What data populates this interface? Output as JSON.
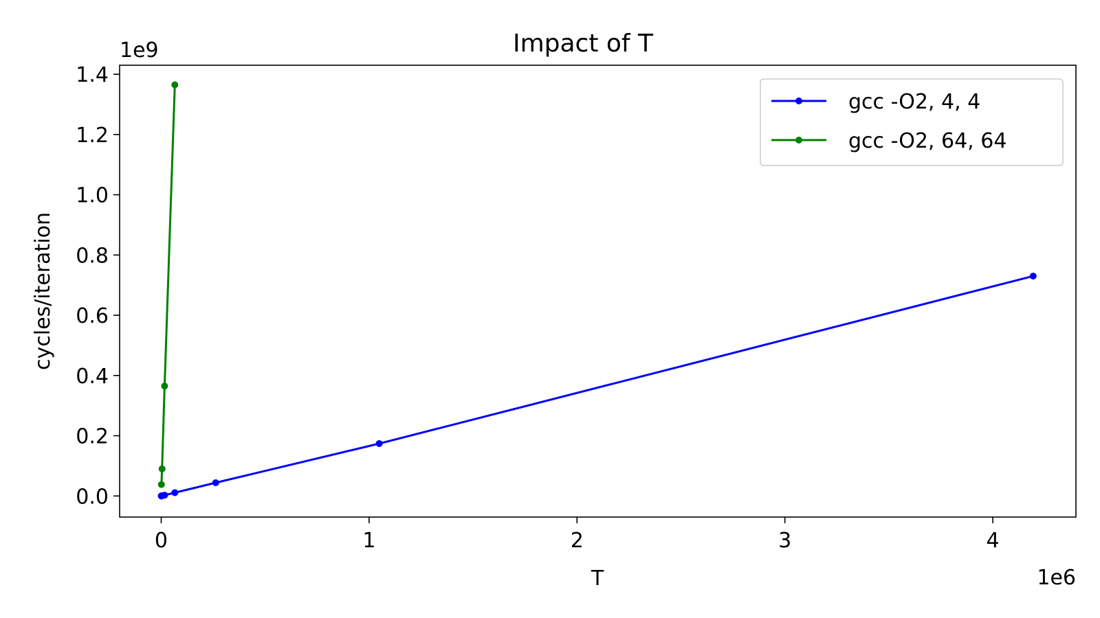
{
  "chart_data": {
    "type": "line",
    "title": "Impact of T",
    "xlabel": "T",
    "ylabel": "cycles/iteration",
    "x_offset_label": "1e6",
    "y_offset_label": "1e9",
    "xlim": [
      -200000,
      4400000
    ],
    "ylim": [
      -70000000,
      1430000000
    ],
    "x_ticks": [
      0,
      1000000,
      2000000,
      3000000,
      4000000
    ],
    "x_tick_labels": [
      "0",
      "1",
      "2",
      "3",
      "4"
    ],
    "y_ticks": [
      0,
      200000000,
      400000000,
      600000000,
      800000000,
      1000000000,
      1200000000,
      1400000000
    ],
    "y_tick_labels": [
      "0.0",
      "0.2",
      "0.4",
      "0.6",
      "0.8",
      "1.0",
      "1.2",
      "1.4"
    ],
    "grid": false,
    "legend_position": "top-right",
    "series": [
      {
        "name": "gcc -O2, 4, 4",
        "color": "#0000ff",
        "x": [
          256,
          1024,
          4096,
          16384,
          65536,
          262144,
          1048576,
          4194304
        ],
        "y": [
          0,
          200000,
          700000,
          2800000,
          11000000,
          44000000,
          174000000,
          730000000
        ]
      },
      {
        "name": "gcc -O2, 64, 64",
        "color": "#008000",
        "x": [
          1024,
          4096,
          16384,
          65536
        ],
        "y": [
          38000000,
          90000000,
          365000000,
          1365000000
        ]
      }
    ]
  }
}
